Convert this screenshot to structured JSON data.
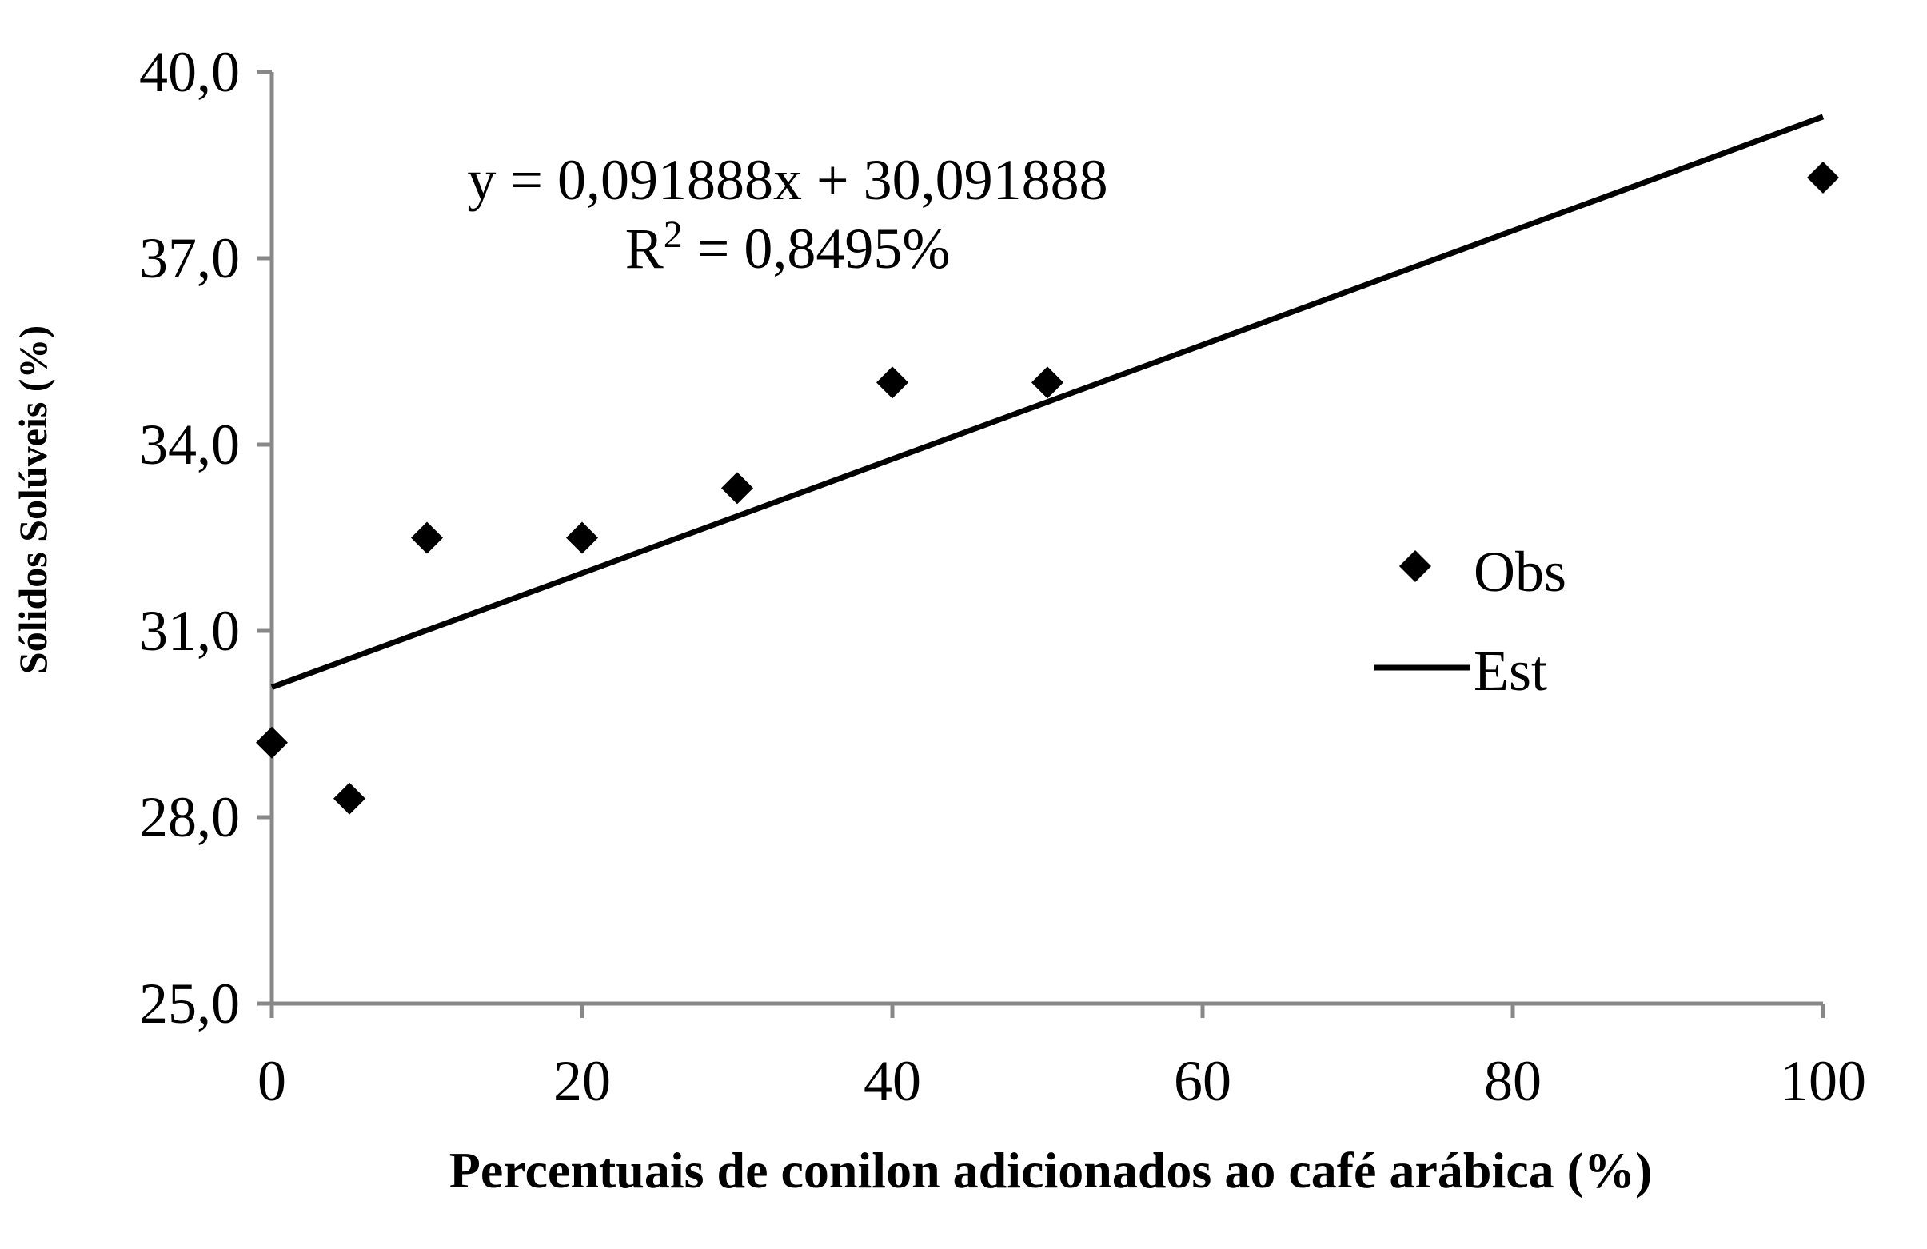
{
  "chart_data": {
    "type": "scatter",
    "title": "",
    "xlabel": "Percentuais de conilon adicionados ao café arábica (%)",
    "ylabel": "Sólidos Solúveis (%)",
    "xlim": [
      0,
      100
    ],
    "ylim": [
      25,
      40
    ],
    "xticks": [
      0,
      20,
      40,
      60,
      80,
      100
    ],
    "xtick_labels": [
      "0",
      "20",
      "40",
      "60",
      "80",
      "100"
    ],
    "yticks": [
      25,
      28,
      31,
      34,
      37,
      40
    ],
    "ytick_labels": [
      "25,0",
      "28,0",
      "31,0",
      "34,0",
      "37,0",
      "40,0"
    ],
    "grid": false,
    "legend_position": "right",
    "series": [
      {
        "name": "Obs",
        "type": "scatter",
        "marker": "diamond",
        "x": [
          0,
          5,
          10,
          20,
          30,
          40,
          50,
          100
        ],
        "y": [
          29.2,
          28.3,
          32.5,
          32.5,
          33.3,
          35.0,
          35.0,
          38.3
        ]
      },
      {
        "name": "Est",
        "type": "line",
        "slope": 0.091888,
        "intercept": 30.091888,
        "x": [
          0,
          100
        ],
        "y": [
          30.091888,
          39.280688
        ]
      }
    ],
    "annotations": {
      "equation": "y = 0,091888x + 30,091888",
      "r2_prefix": "R",
      "r2_sup": "2",
      "r2_value": " = 0,8495%"
    },
    "colors": {
      "axis": "#888888",
      "data": "#000000"
    }
  }
}
